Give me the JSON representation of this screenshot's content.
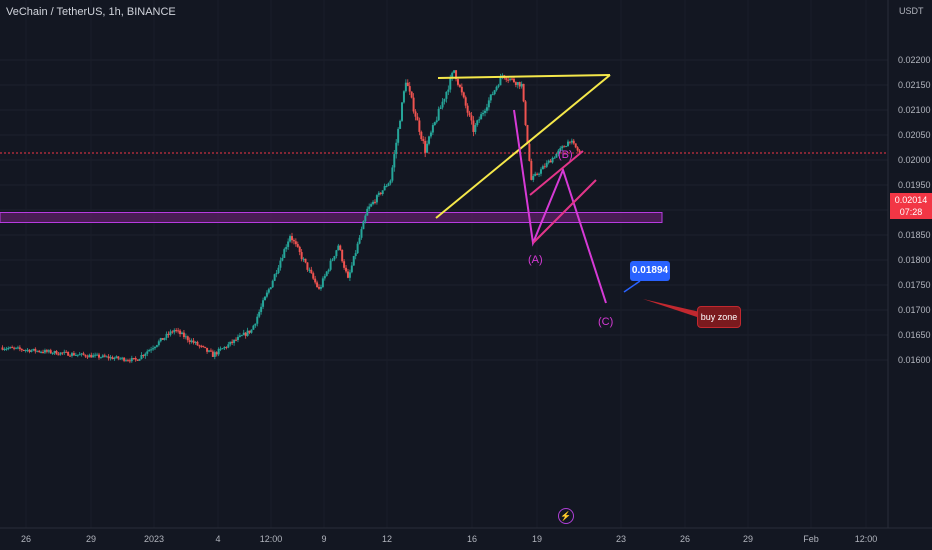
{
  "header": {
    "title": "VeChain / TetherUS, 1h, BINANCE",
    "currency": "USDT"
  },
  "price_tag": {
    "price": "0.02014",
    "countdown": "07:28"
  },
  "callout": {
    "value": "0.01894"
  },
  "note": {
    "text": "buy zone"
  },
  "wave_labels": {
    "a": "(A)",
    "b": "(B)",
    "c": "(C)"
  },
  "event_icon": "lightning-icon",
  "colors": {
    "background": "#131722",
    "up": "#26a69a",
    "down": "#ef5350",
    "triangle": "#f5e84a",
    "wave": "#d63ad6",
    "channel": "#e2358a",
    "zone": "#5c1f66",
    "price_tag": "#f23645",
    "callout": "#2962ff"
  },
  "chart_data": {
    "type": "candlestick",
    "y_ticks": [
      "0.02200",
      "0.02150",
      "0.02100",
      "0.02050",
      "0.02000",
      "0.01950",
      "0.01900",
      "0.01850",
      "0.01800",
      "0.01750",
      "0.01700",
      "0.01650",
      "0.01600"
    ],
    "x_ticks": [
      "26",
      "29",
      "2023",
      "4",
      "12:00",
      "9",
      "12",
      "16",
      "19",
      "23",
      "26",
      "29",
      "Feb",
      "12:00"
    ],
    "current_price": 0.02014,
    "buy_zone": {
      "low": 0.01875,
      "high": 0.01895
    },
    "segments": [
      {
        "from": 0.01625,
        "to": 0.016,
        "n": 70,
        "vol": 8e-05
      },
      {
        "from": 0.016,
        "to": 0.0166,
        "n": 20,
        "vol": 0.0001
      },
      {
        "from": 0.0166,
        "to": 0.0161,
        "n": 20,
        "vol": 0.0001
      },
      {
        "from": 0.0161,
        "to": 0.0166,
        "n": 20,
        "vol": 0.0001
      },
      {
        "from": 0.0166,
        "to": 0.0175,
        "n": 10,
        "vol": 0.00012
      },
      {
        "from": 0.0175,
        "to": 0.0185,
        "n": 10,
        "vol": 0.00012
      },
      {
        "from": 0.0185,
        "to": 0.0174,
        "n": 15,
        "vol": 0.00012
      },
      {
        "from": 0.0174,
        "to": 0.0183,
        "n": 10,
        "vol": 0.00012
      },
      {
        "from": 0.0183,
        "to": 0.0176,
        "n": 5,
        "vol": 0.00012
      },
      {
        "from": 0.0176,
        "to": 0.019,
        "n": 10,
        "vol": 0.00012
      },
      {
        "from": 0.019,
        "to": 0.0196,
        "n": 12,
        "vol": 0.0001
      },
      {
        "from": 0.0196,
        "to": 0.0216,
        "n": 8,
        "vol": 0.00015
      },
      {
        "from": 0.0216,
        "to": 0.0202,
        "n": 10,
        "vol": 0.00015
      },
      {
        "from": 0.0202,
        "to": 0.0218,
        "n": 15,
        "vol": 0.00015
      },
      {
        "from": 0.0218,
        "to": 0.0206,
        "n": 10,
        "vol": 0.00015
      },
      {
        "from": 0.0206,
        "to": 0.0217,
        "n": 15,
        "vol": 0.00012
      },
      {
        "from": 0.0217,
        "to": 0.0215,
        "n": 10,
        "vol": 0.00012
      },
      {
        "from": 0.0215,
        "to": 0.0196,
        "n": 5,
        "vol": 0.00012
      },
      {
        "from": 0.0196,
        "to": 0.0204,
        "n": 20,
        "vol": 0.0001
      },
      {
        "from": 0.0204,
        "to": 0.02014,
        "n": 5,
        "vol": 8e-05
      }
    ],
    "drawings": {
      "triangle_top": [
        [
          0.02168,
          0.02172
        ]
      ],
      "wave_points": [
        "(A)",
        "(B)",
        "(C)"
      ],
      "projection_target": 0.0188
    }
  }
}
